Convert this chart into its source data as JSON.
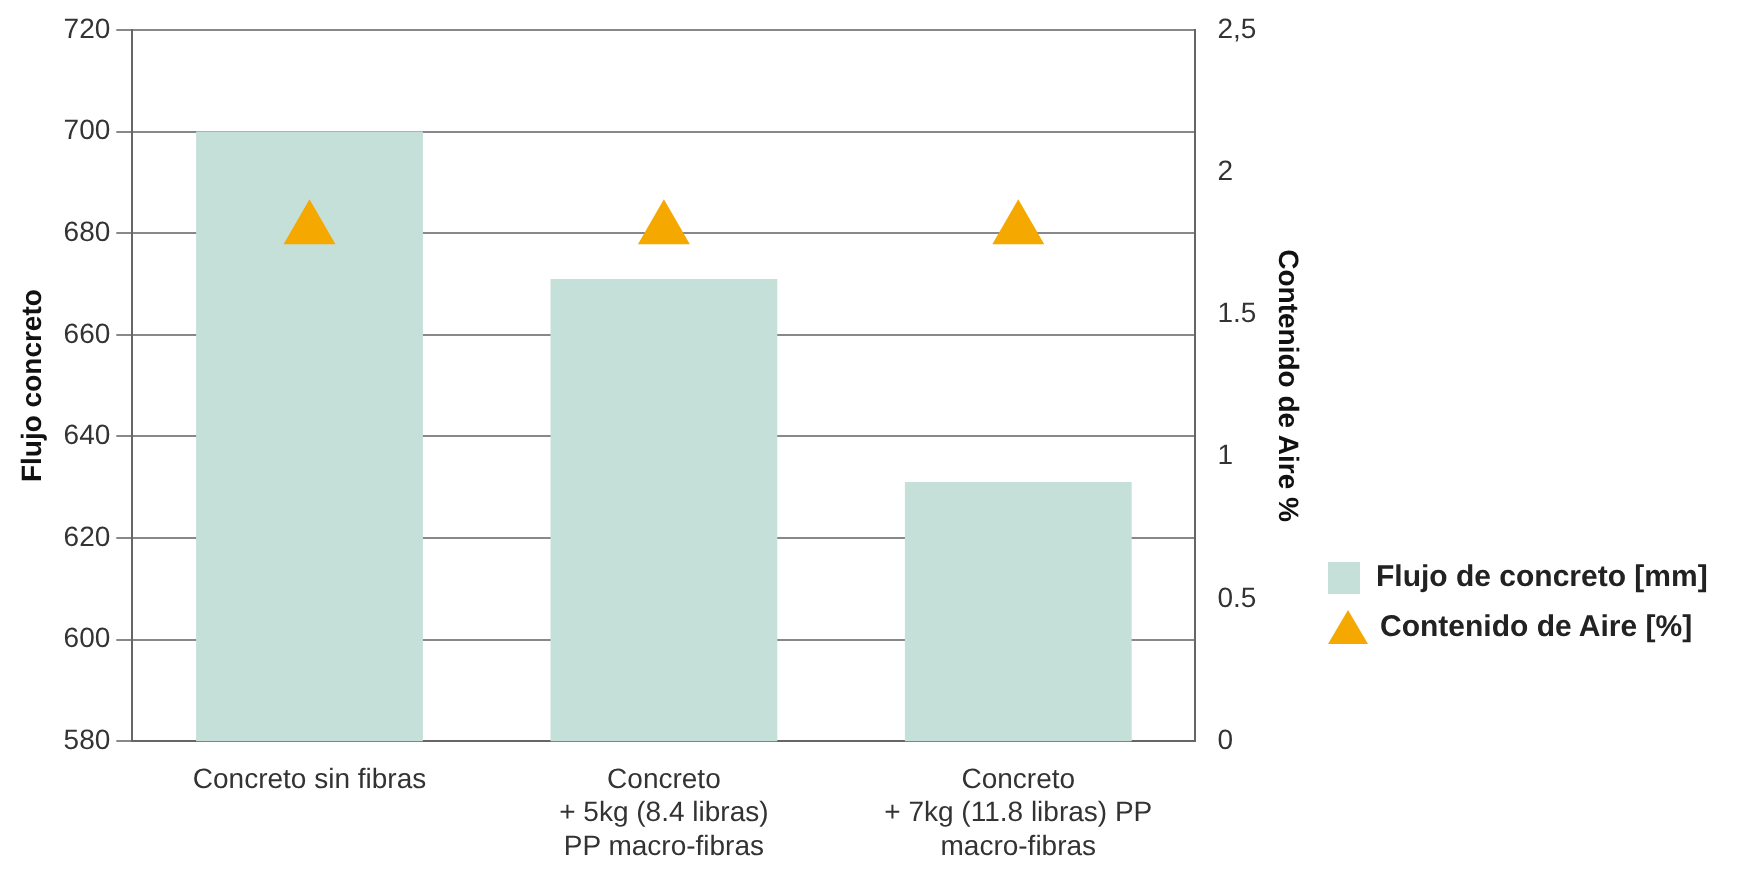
{
  "chart_data": {
    "type": "bar",
    "ylabel": "Flujo concreto",
    "y2label": "Contenido de Aire %",
    "categories": [
      "Concreto sin fibras",
      "Concreto\n+ 5kg (8.4 libras)\nPP macro-fibras",
      "Concreto\n+ 7kg (11.8 libras) PP\nmacro-fibras"
    ],
    "series": [
      {
        "name": "Flujo de concreto [mm]",
        "color": "#c5e0d8",
        "values": [
          700,
          671,
          631
        ]
      },
      {
        "name": "Contenido de Aire [%]",
        "type": "scatter",
        "axis": "y2",
        "marker": "triangle",
        "color": "#f5a800",
        "values": [
          1.8,
          1.8,
          1.8
        ]
      }
    ],
    "ylim": [
      580,
      720
    ],
    "yticks": [
      580,
      600,
      620,
      640,
      660,
      680,
      700,
      720
    ],
    "y2lim": [
      0,
      2.5
    ],
    "y2ticks": [
      0,
      {
        "value": 0.5,
        "label": "0.5"
      },
      1,
      {
        "value": 1.5,
        "label": "1.5"
      },
      2,
      {
        "value": 2.5,
        "label": "2,5"
      }
    ],
    "grid": "y",
    "legend": "right"
  }
}
